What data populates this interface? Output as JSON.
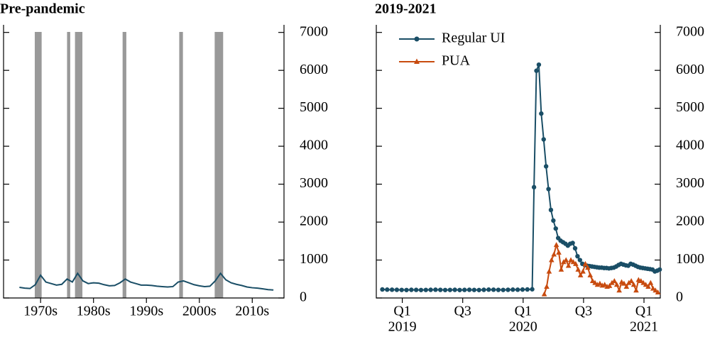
{
  "chart_data": [
    {
      "type": "line",
      "title": "Pre-pandemic",
      "xlim": [
        1968,
        2021
      ],
      "xticks": [
        {
          "value": 1975,
          "label": "1970s"
        },
        {
          "value": 1985,
          "label": "1980s"
        },
        {
          "value": 1995,
          "label": "1990s"
        },
        {
          "value": 2005,
          "label": "2000s"
        },
        {
          "value": 2015,
          "label": "2010s"
        }
      ],
      "ylim": [
        0,
        7200
      ],
      "yticks": [
        0,
        1000,
        2000,
        3000,
        4000,
        5000,
        6000,
        7000
      ],
      "recessions": [
        [
          1973.9,
          1975.2
        ],
        [
          1980.0,
          1980.6
        ],
        [
          1981.5,
          1982.9
        ],
        [
          1990.5,
          1991.2
        ],
        [
          2001.2,
          2001.9
        ],
        [
          2007.9,
          2009.5
        ]
      ],
      "recession_color": "#999999",
      "series": [
        {
          "color": "#1a4e66",
          "x": [
            1971,
            1972,
            1973,
            1974,
            1975,
            1976,
            1977,
            1978,
            1979,
            1980,
            1981,
            1982,
            1983,
            1984,
            1985,
            1986,
            1987,
            1988,
            1989,
            1990,
            1991,
            1992,
            1993,
            1994,
            1995,
            1996,
            1997,
            1998,
            1999,
            2000,
            2001,
            2002,
            2003,
            2004,
            2005,
            2006,
            2007,
            2008,
            2009,
            2010,
            2011,
            2012,
            2013,
            2014,
            2015,
            2016,
            2017,
            2018,
            2019
          ],
          "values": [
            280,
            260,
            250,
            350,
            600,
            420,
            380,
            340,
            360,
            500,
            420,
            650,
            450,
            380,
            400,
            390,
            350,
            320,
            330,
            400,
            500,
            420,
            380,
            340,
            340,
            330,
            310,
            300,
            290,
            300,
            420,
            450,
            400,
            350,
            320,
            300,
            310,
            450,
            650,
            480,
            400,
            360,
            330,
            290,
            270,
            260,
            240,
            220,
            210
          ]
        }
      ]
    },
    {
      "type": "line",
      "title": "2019-2021",
      "xlim": [
        2018.91,
        2021.26
      ],
      "xticks": [
        {
          "value": 2019.125,
          "label": "Q1"
        },
        {
          "value": 2019.625,
          "label": "Q3"
        },
        {
          "value": 2020.125,
          "label": "Q1"
        },
        {
          "value": 2020.625,
          "label": "Q3"
        },
        {
          "value": 2021.125,
          "label": "Q1"
        }
      ],
      "x_year_labels": [
        {
          "value": 2019.125,
          "label": "2019"
        },
        {
          "value": 2020.125,
          "label": "2020"
        },
        {
          "value": 2021.125,
          "label": "2021"
        }
      ],
      "ylim": [
        0,
        7200
      ],
      "yticks": [
        0,
        1000,
        2000,
        3000,
        4000,
        5000,
        6000,
        7000
      ],
      "legend": "upper left",
      "series": [
        {
          "name": "Regular UI",
          "color": "#1a4e66",
          "marker": "circle",
          "x": [
            2018.96,
            2019,
            2019.04,
            2019.08,
            2019.12,
            2019.16,
            2019.2,
            2019.24,
            2019.28,
            2019.32,
            2019.36,
            2019.4,
            2019.44,
            2019.48,
            2019.52,
            2019.56,
            2019.6,
            2019.64,
            2019.68,
            2019.72,
            2019.76,
            2019.8,
            2019.84,
            2019.88,
            2019.92,
            2019.96,
            2020,
            2020.04,
            2020.08,
            2020.12,
            2020.16,
            2020.2,
            2020.215,
            2020.235,
            2020.255,
            2020.275,
            2020.295,
            2020.315,
            2020.335,
            2020.355,
            2020.375,
            2020.395,
            2020.415,
            2020.435,
            2020.455,
            2020.475,
            2020.495,
            2020.515,
            2020.535,
            2020.555,
            2020.575,
            2020.595,
            2020.615,
            2020.635,
            2020.655,
            2020.675,
            2020.695,
            2020.715,
            2020.735,
            2020.755,
            2020.775,
            2020.795,
            2020.815,
            2020.835,
            2020.855,
            2020.875,
            2020.895,
            2020.915,
            2020.935,
            2020.955,
            2020.975,
            2020.995,
            2021.015,
            2021.035,
            2021.055,
            2021.075,
            2021.095,
            2021.115,
            2021.135,
            2021.155,
            2021.175,
            2021.195,
            2021.215,
            2021.235,
            2021.255
          ],
          "values": [
            225,
            220,
            218,
            215,
            212,
            210,
            215,
            213,
            210,
            212,
            215,
            218,
            214,
            210,
            212,
            215,
            210,
            213,
            216,
            212,
            210,
            215,
            220,
            218,
            214,
            212,
            216,
            220,
            218,
            222,
            225,
            230,
            2920,
            5990,
            6150,
            4860,
            4180,
            3470,
            2870,
            2320,
            2040,
            1830,
            1580,
            1510,
            1470,
            1430,
            1380,
            1430,
            1450,
            1310,
            1100,
            1000,
            900,
            870,
            850,
            840,
            830,
            820,
            810,
            800,
            800,
            790,
            790,
            780,
            790,
            800,
            830,
            870,
            900,
            880,
            860,
            850,
            900,
            880,
            850,
            820,
            800,
            790,
            780,
            770,
            760,
            750,
            700,
            720,
            750
          ]
        },
        {
          "name": "PUA",
          "color": "#c84b0f",
          "marker": "triangle",
          "x": [
            2020.3,
            2020.32,
            2020.34,
            2020.36,
            2020.38,
            2020.4,
            2020.42,
            2020.44,
            2020.46,
            2020.48,
            2020.5,
            2020.52,
            2020.54,
            2020.56,
            2020.58,
            2020.6,
            2020.62,
            2020.64,
            2020.66,
            2020.68,
            2020.7,
            2020.72,
            2020.74,
            2020.76,
            2020.78,
            2020.8,
            2020.82,
            2020.84,
            2020.86,
            2020.88,
            2020.9,
            2020.92,
            2020.94,
            2020.96,
            2020.98,
            2021,
            2021.02,
            2021.04,
            2021.06,
            2021.08,
            2021.1,
            2021.12,
            2021.14,
            2021.16,
            2021.18,
            2021.2,
            2021.22,
            2021.24
          ],
          "values": [
            100,
            300,
            700,
            1000,
            1150,
            1400,
            1200,
            750,
            950,
            1000,
            850,
            1000,
            950,
            900,
            750,
            600,
            700,
            900,
            800,
            600,
            450,
            400,
            350,
            380,
            330,
            350,
            300,
            320,
            400,
            450,
            350,
            200,
            420,
            380,
            300,
            400,
            450,
            350,
            200,
            480,
            450,
            400,
            350,
            300,
            400,
            250,
            200,
            150
          ]
        }
      ]
    }
  ]
}
